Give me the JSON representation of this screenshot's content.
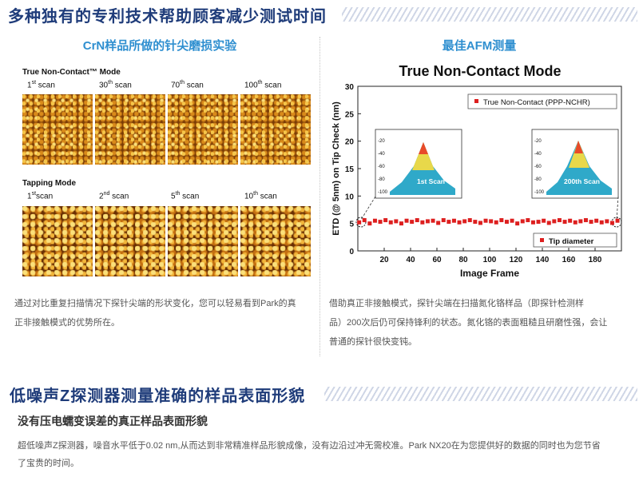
{
  "section1": {
    "title": "多种独有的专利技术帮助顾客减少测试时间"
  },
  "left": {
    "heading": "CrN样品所做的针尖磨损实验",
    "nc_mode": "True Non-Contact™ Mode",
    "tapping_mode": "Tapping Mode",
    "nc_scans": [
      {
        "num": "1",
        "sup": "st",
        "rest": " scan"
      },
      {
        "num": "30",
        "sup": "th",
        "rest": " scan"
      },
      {
        "num": "70",
        "sup": "th",
        "rest": " scan"
      },
      {
        "num": "100",
        "sup": "th",
        "rest": " scan"
      }
    ],
    "tp_scans": [
      {
        "num": "1",
        "sup": "st",
        "rest": "scan"
      },
      {
        "num": "2",
        "sup": "nd",
        "rest": " scan"
      },
      {
        "num": "5",
        "sup": "th",
        "rest": " scan"
      },
      {
        "num": "10",
        "sup": "th",
        "rest": " scan"
      }
    ],
    "caption_line1": "通过对比重复扫描情况下探针尖端的形状变化，您可以轻易看到Park的真",
    "caption_line2": "正非接触模式的优势所在。"
  },
  "right": {
    "heading": "最佳AFM测量",
    "caption_line1": "借助真正非接触模式，探针尖端在扫描氮化铬样品（即探针检测样",
    "caption_line2": "品）200次后仍可保持锋利的状态。氮化铬的表面粗糙且研磨性强，会让",
    "caption_line3": "普通的探针很快变钝。"
  },
  "section2": {
    "title": "低噪声Z探测器测量准确的样品表面形貌",
    "subtitle": "没有压电蠕变误差的真正样品表面形貌",
    "body_line1": "超低噪声Z探测器，噪音水平低于0.02 nm,从而达到非常精准样品形貌成像，没有边沿过冲无需校准。Park NX20在为您提供好的数据的同时也为您节省",
    "body_line2": "了宝贵的时间。"
  },
  "chart_data": {
    "type": "scatter",
    "title": "True Non-Contact Mode",
    "xlabel": "Image Frame",
    "ylabel": "ETD (@ 5nm) on Tip Check (nm)",
    "xlim": [
      0,
      200
    ],
    "ylim": [
      0,
      30
    ],
    "xticks": [
      "20",
      "40",
      "60",
      "80",
      "100",
      "120",
      "140",
      "160",
      "180"
    ],
    "yticks": [
      "0",
      "5",
      "10",
      "15",
      "20",
      "25",
      "30"
    ],
    "legend_top": "True Non-Contact (PPP-NCHR)",
    "legend_bottom": "Tip diameter",
    "inset_left_label": "1st Scan",
    "inset_right_label": "200th Scan",
    "inset_yticks": [
      "-20",
      "-40",
      "-60",
      "-80",
      "-100"
    ],
    "series_color": "#dd1f1f",
    "series": [
      {
        "name": "True Non-Contact (PPP-NCHR)",
        "x": [
          1,
          5,
          9,
          13,
          17,
          21,
          25,
          29,
          33,
          37,
          41,
          45,
          49,
          53,
          57,
          61,
          65,
          69,
          73,
          77,
          81,
          85,
          89,
          93,
          97,
          101,
          105,
          109,
          113,
          117,
          121,
          125,
          129,
          133,
          137,
          141,
          145,
          149,
          153,
          157,
          161,
          165,
          169,
          173,
          177,
          181,
          185,
          189,
          193,
          197
        ],
        "y": [
          5.2,
          5.6,
          5.0,
          5.5,
          5.3,
          5.6,
          5.2,
          5.4,
          5.0,
          5.5,
          5.3,
          5.6,
          5.2,
          5.4,
          5.5,
          5.1,
          5.6,
          5.3,
          5.5,
          5.2,
          5.4,
          5.6,
          5.3,
          5.1,
          5.5,
          5.4,
          5.2,
          5.6,
          5.3,
          5.5,
          5.0,
          5.4,
          5.6,
          5.2,
          5.3,
          5.5,
          5.1,
          5.4,
          5.6,
          5.3,
          5.5,
          5.2,
          5.4,
          5.6,
          5.3,
          5.5,
          5.2,
          5.4,
          5.1,
          5.5
        ]
      }
    ]
  }
}
